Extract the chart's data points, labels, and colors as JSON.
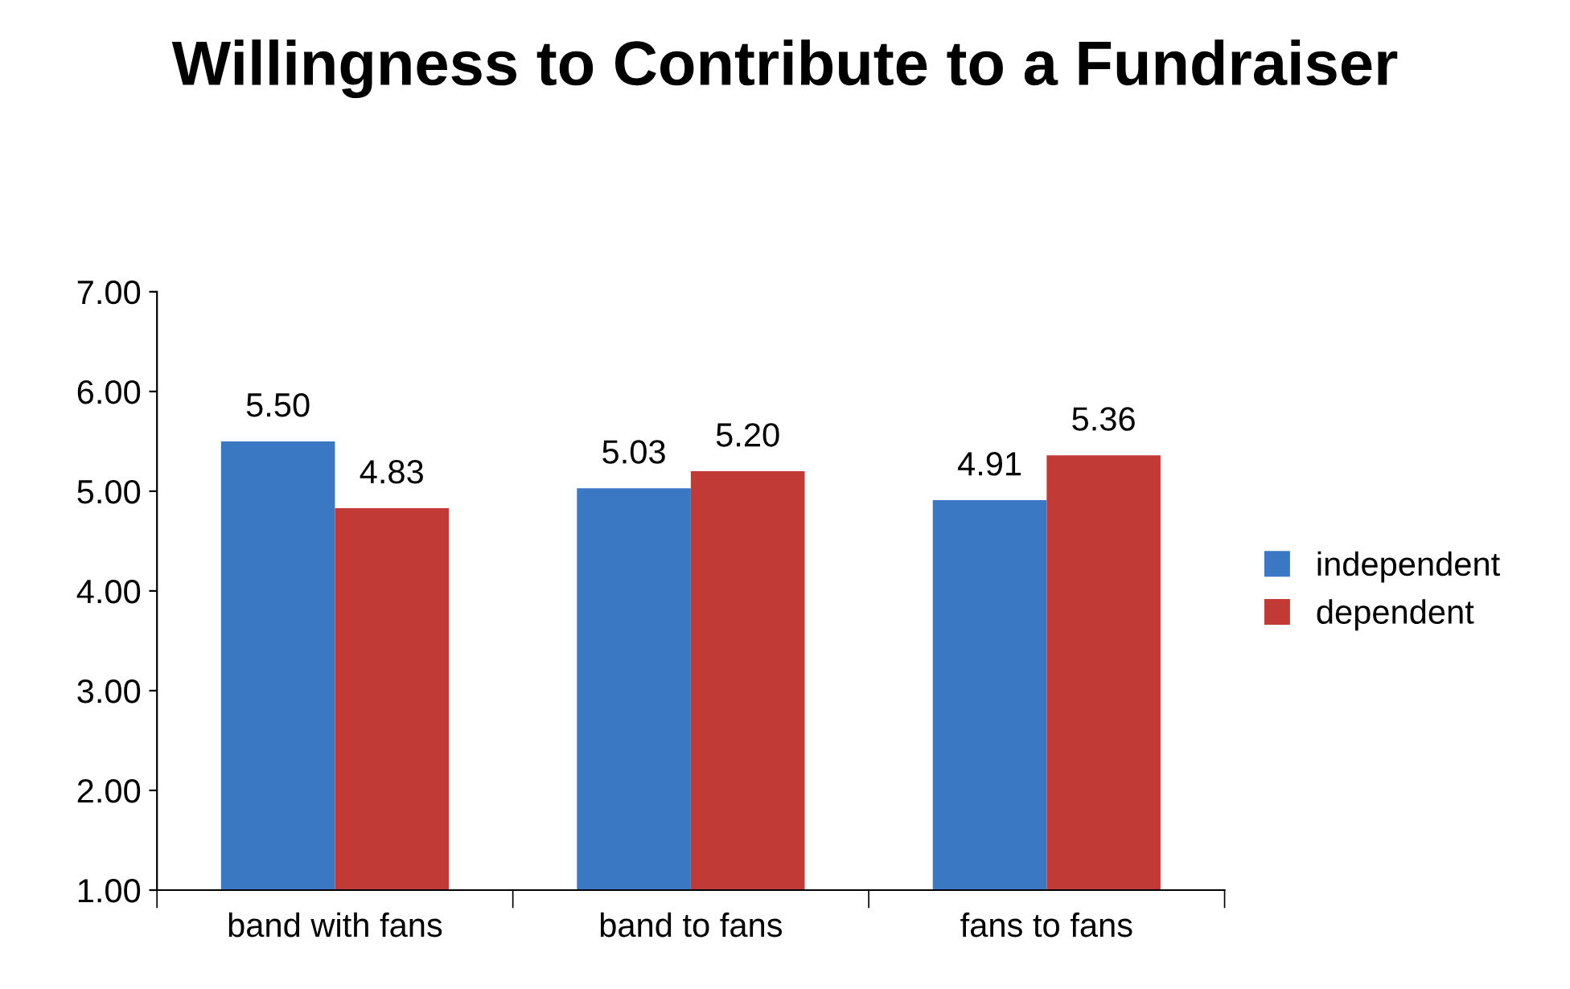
{
  "chart_data": {
    "type": "bar",
    "title": "Willingness to Contribute to a Fundraiser",
    "categories": [
      "band with fans",
      "band to fans",
      "fans to fans"
    ],
    "series": [
      {
        "name": "independent",
        "color": "#3a78c4",
        "values": [
          5.5,
          5.03,
          4.91
        ],
        "value_labels": [
          "5.50",
          "5.03",
          "4.91"
        ]
      },
      {
        "name": "dependent",
        "color": "#c23a36",
        "values": [
          4.83,
          5.2,
          5.36
        ],
        "value_labels": [
          "4.83",
          "5.20",
          "5.36"
        ]
      }
    ],
    "ylim": [
      1,
      7
    ],
    "yticks": [
      {
        "value": 1,
        "label": "1.00"
      },
      {
        "value": 2,
        "label": "2.00"
      },
      {
        "value": 3,
        "label": "3.00"
      },
      {
        "value": 4,
        "label": "4.00"
      },
      {
        "value": 5,
        "label": "5.00"
      },
      {
        "value": 6,
        "label": "6.00"
      },
      {
        "value": 7,
        "label": "7.00"
      }
    ],
    "grid": false,
    "legend": "right"
  }
}
